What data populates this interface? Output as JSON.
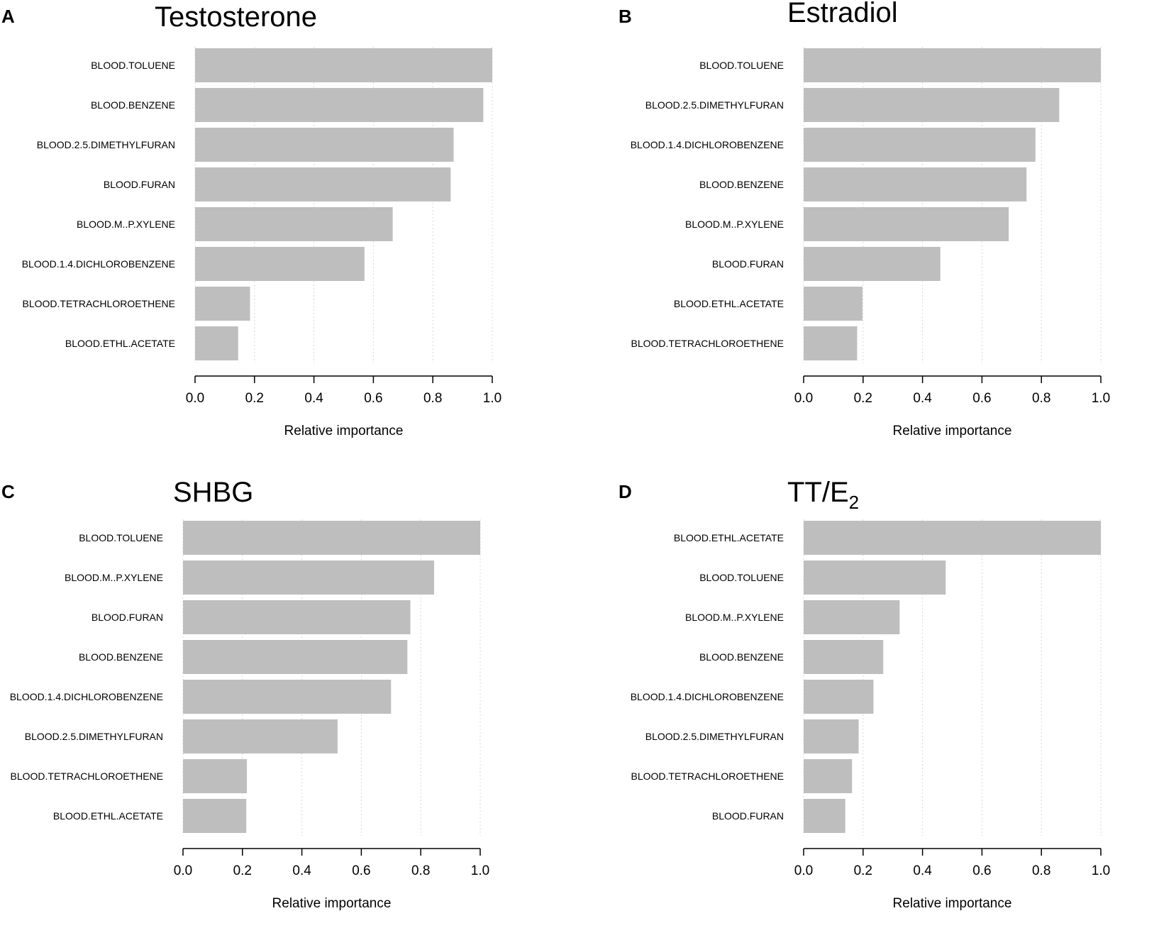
{
  "chart_data": [
    {
      "panel": "A",
      "title": "Testosterone",
      "type": "bar",
      "orientation": "horizontal",
      "categories": [
        "BLOOD.TOLUENE",
        "BLOOD.BENZENE",
        "BLOOD.2.5.DIMETHYLFURAN",
        "BLOOD.FURAN",
        "BLOOD.M..P.XYLENE",
        "BLOOD.1.4.DICHLOROBENZENE",
        "BLOOD.TETRACHLOROETHENE",
        "BLOOD.ETHL.ACETATE"
      ],
      "values": [
        1.0,
        0.97,
        0.87,
        0.86,
        0.665,
        0.57,
        0.185,
        0.145
      ],
      "xlabel": "Relative importance",
      "ylabel": "",
      "xlim": [
        0,
        1
      ],
      "xticks": [
        "0.0",
        "0.2",
        "0.4",
        "0.6",
        "0.8",
        "1.0"
      ],
      "grid": "vertical dotted"
    },
    {
      "panel": "B",
      "title": "Estradiol",
      "type": "bar",
      "orientation": "horizontal",
      "categories": [
        "BLOOD.TOLUENE",
        "BLOOD.2.5.DIMETHYLFURAN",
        "BLOOD.1.4.DICHLOROBENZENE",
        "BLOOD.BENZENE",
        "BLOOD.M..P.XYLENE",
        "BLOOD.FURAN",
        "BLOOD.ETHL.ACETATE",
        "BLOOD.TETRACHLOROETHENE"
      ],
      "values": [
        1.0,
        0.86,
        0.78,
        0.75,
        0.69,
        0.46,
        0.198,
        0.18
      ],
      "xlabel": "Relative importance",
      "ylabel": "",
      "xlim": [
        0,
        1
      ],
      "xticks": [
        "0.0",
        "0.2",
        "0.4",
        "0.6",
        "0.8",
        "1.0"
      ],
      "grid": "vertical dotted"
    },
    {
      "panel": "C",
      "title": "SHBG",
      "type": "bar",
      "orientation": "horizontal",
      "categories": [
        "BLOOD.TOLUENE",
        "BLOOD.M..P.XYLENE",
        "BLOOD.FURAN",
        "BLOOD.BENZENE",
        "BLOOD.1.4.DICHLOROBENZENE",
        "BLOOD.2.5.DIMETHYLFURAN",
        "BLOOD.TETRACHLOROETHENE",
        "BLOOD.ETHL.ACETATE"
      ],
      "values": [
        1.0,
        0.845,
        0.765,
        0.755,
        0.7,
        0.52,
        0.215,
        0.213
      ],
      "xlabel": "Relative importance",
      "ylabel": "",
      "xlim": [
        0,
        1
      ],
      "xticks": [
        "0.0",
        "0.2",
        "0.4",
        "0.6",
        "0.8",
        "1.0"
      ],
      "grid": "vertical dotted"
    },
    {
      "panel": "D",
      "title": "TT/E",
      "title_subscript": "2",
      "type": "bar",
      "orientation": "horizontal",
      "categories": [
        "BLOOD.ETHL.ACETATE",
        "BLOOD.TOLUENE",
        "BLOOD.M..P.XYLENE",
        "BLOOD.BENZENE",
        "BLOOD.1.4.DICHLOROBENZENE",
        "BLOOD.2.5.DIMETHYLFURAN",
        "BLOOD.TETRACHLOROETHENE",
        "BLOOD.FURAN"
      ],
      "values": [
        1.0,
        0.478,
        0.323,
        0.268,
        0.235,
        0.185,
        0.163,
        0.14
      ],
      "xlabel": "Relative importance",
      "ylabel": "",
      "xlim": [
        0,
        1
      ],
      "xticks": [
        "0.0",
        "0.2",
        "0.4",
        "0.6",
        "0.8",
        "1.0"
      ],
      "grid": "vertical dotted"
    }
  ],
  "colors": {
    "bar": "#bebebe",
    "grid": "#d8d8d8",
    "axis": "#000000"
  }
}
